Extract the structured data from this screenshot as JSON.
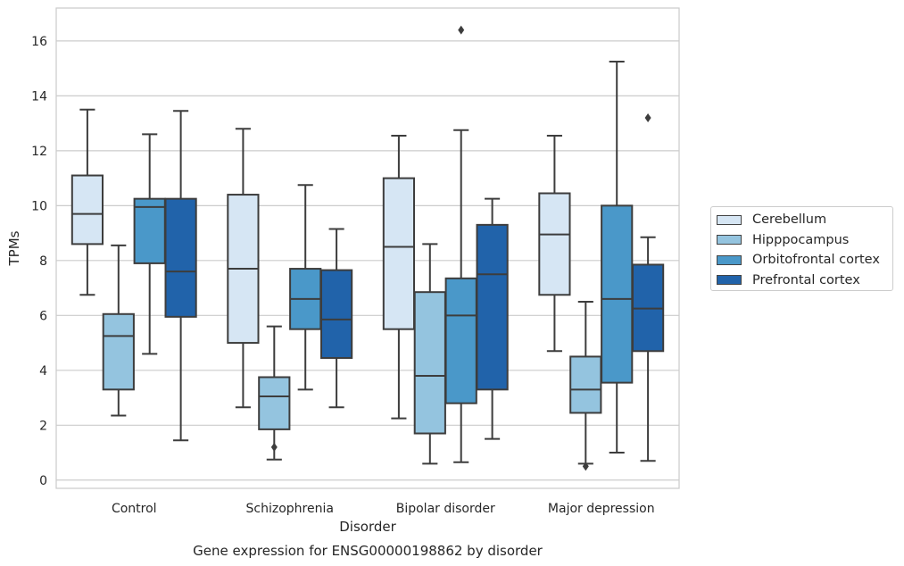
{
  "chart_data": {
    "type": "boxplot",
    "title": "Gene expression for ENSG00000198862 by disorder",
    "xlabel": "Disorder",
    "ylabel": "TPMs",
    "ylim": [
      -0.3,
      17.2
    ],
    "yticks": [
      0,
      2,
      4,
      6,
      8,
      10,
      12,
      14,
      16
    ],
    "grid": true,
    "legend_position": "right",
    "categories": [
      "Control",
      "Schizophrenia",
      "Bipolar disorder",
      "Major depression"
    ],
    "series": [
      {
        "name": "Cerebellum",
        "color": "#d6e6f4",
        "boxes": [
          {
            "whislo": 6.75,
            "q1": 8.6,
            "med": 9.7,
            "q3": 11.1,
            "whishi": 13.5,
            "fliers": []
          },
          {
            "whislo": 2.65,
            "q1": 5.0,
            "med": 7.7,
            "q3": 10.4,
            "whishi": 12.8,
            "fliers": []
          },
          {
            "whislo": 2.25,
            "q1": 5.5,
            "med": 8.5,
            "q3": 11.0,
            "whishi": 12.55,
            "fliers": []
          },
          {
            "whislo": 4.7,
            "q1": 6.75,
            "med": 8.95,
            "q3": 10.45,
            "whishi": 12.55,
            "fliers": []
          }
        ]
      },
      {
        "name": "Hipppocampus",
        "color": "#94c4df",
        "boxes": [
          {
            "whislo": 2.35,
            "q1": 3.3,
            "med": 5.25,
            "q3": 6.05,
            "whishi": 8.55,
            "fliers": []
          },
          {
            "whislo": 0.75,
            "q1": 1.85,
            "med": 3.05,
            "q3": 3.75,
            "whishi": 5.6,
            "fliers": [
              1.2
            ]
          },
          {
            "whislo": 0.6,
            "q1": 1.7,
            "med": 3.8,
            "q3": 6.85,
            "whishi": 8.6,
            "fliers": []
          },
          {
            "whislo": 0.6,
            "q1": 2.45,
            "med": 3.3,
            "q3": 4.5,
            "whishi": 6.5,
            "fliers": [
              0.5
            ]
          }
        ]
      },
      {
        "name": "Orbitofrontal cortex",
        "color": "#4a98c9",
        "boxes": [
          {
            "whislo": 4.6,
            "q1": 7.9,
            "med": 9.95,
            "q3": 10.25,
            "whishi": 12.6,
            "fliers": []
          },
          {
            "whislo": 3.3,
            "q1": 5.5,
            "med": 6.6,
            "q3": 7.7,
            "whishi": 10.75,
            "fliers": []
          },
          {
            "whislo": 0.65,
            "q1": 2.8,
            "med": 6.0,
            "q3": 7.35,
            "whishi": 12.75,
            "fliers": [
              16.4
            ]
          },
          {
            "whislo": 1.0,
            "q1": 3.55,
            "med": 6.6,
            "q3": 10.0,
            "whishi": 15.25,
            "fliers": []
          }
        ]
      },
      {
        "name": "Prefrontal cortex",
        "color": "#2163aa",
        "boxes": [
          {
            "whislo": 1.45,
            "q1": 5.95,
            "med": 7.6,
            "q3": 10.25,
            "whishi": 13.45,
            "fliers": []
          },
          {
            "whislo": 2.65,
            "q1": 4.45,
            "med": 5.85,
            "q3": 7.65,
            "whishi": 9.15,
            "fliers": []
          },
          {
            "whislo": 1.5,
            "q1": 3.3,
            "med": 7.5,
            "q3": 9.3,
            "whishi": 10.25,
            "fliers": []
          },
          {
            "whislo": 0.7,
            "q1": 4.7,
            "med": 6.25,
            "q3": 7.85,
            "whishi": 8.85,
            "fliers": [
              13.2
            ]
          }
        ]
      }
    ]
  }
}
